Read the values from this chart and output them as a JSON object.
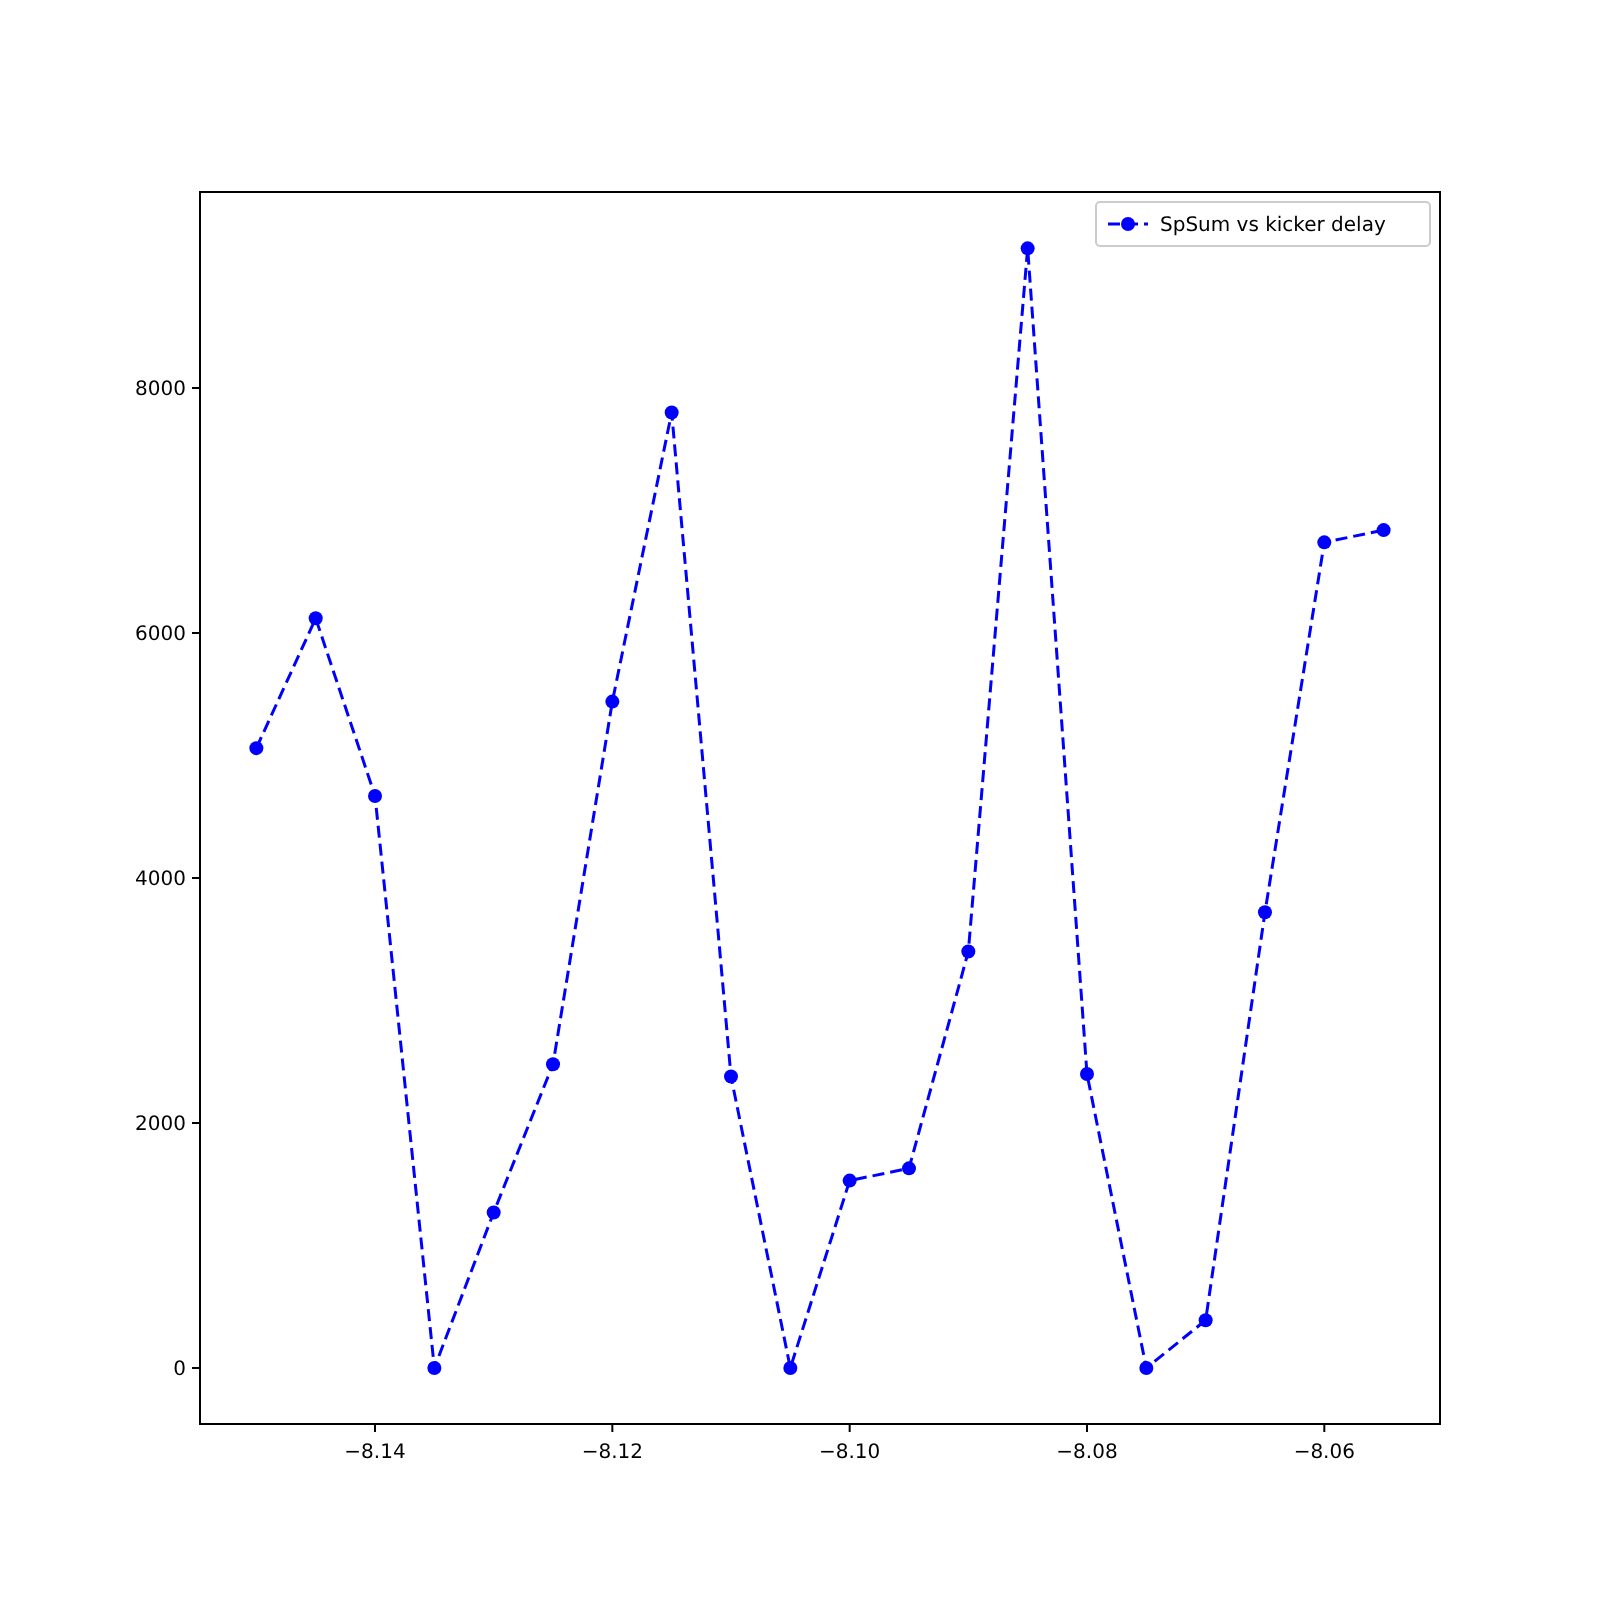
{
  "chart_data": {
    "type": "line",
    "x": [
      -8.15,
      -8.145,
      -8.14,
      -8.135,
      -8.13,
      -8.125,
      -8.12,
      -8.115,
      -8.11,
      -8.105,
      -8.1,
      -8.095,
      -8.09,
      -8.085,
      -8.08,
      -8.075,
      -8.07,
      -8.065,
      -8.06,
      -8.055
    ],
    "series": [
      {
        "name": "SpSum vs kicker delay",
        "color": "#0000ff",
        "values": [
          5060,
          6120,
          4670,
          0,
          1270,
          2480,
          5440,
          7800,
          2380,
          0,
          1530,
          1630,
          3400,
          9140,
          2400,
          0,
          390,
          3720,
          6740,
          6840
        ]
      }
    ],
    "xlim": [
      -8.15475,
      -8.05025
    ],
    "xticks": [
      {
        "value": -8.14,
        "label": "−8.14"
      },
      {
        "value": -8.12,
        "label": "−8.12"
      },
      {
        "value": -8.1,
        "label": "−8.10"
      },
      {
        "value": -8.08,
        "label": "−8.08"
      },
      {
        "value": -8.06,
        "label": "−8.06"
      }
    ],
    "ylim": [
      -457,
      9600
    ],
    "yticks": [
      0,
      2000,
      4000,
      6000,
      8000
    ],
    "grid": false,
    "legend": "top right",
    "marker": "circle",
    "line_style": "dashed"
  }
}
